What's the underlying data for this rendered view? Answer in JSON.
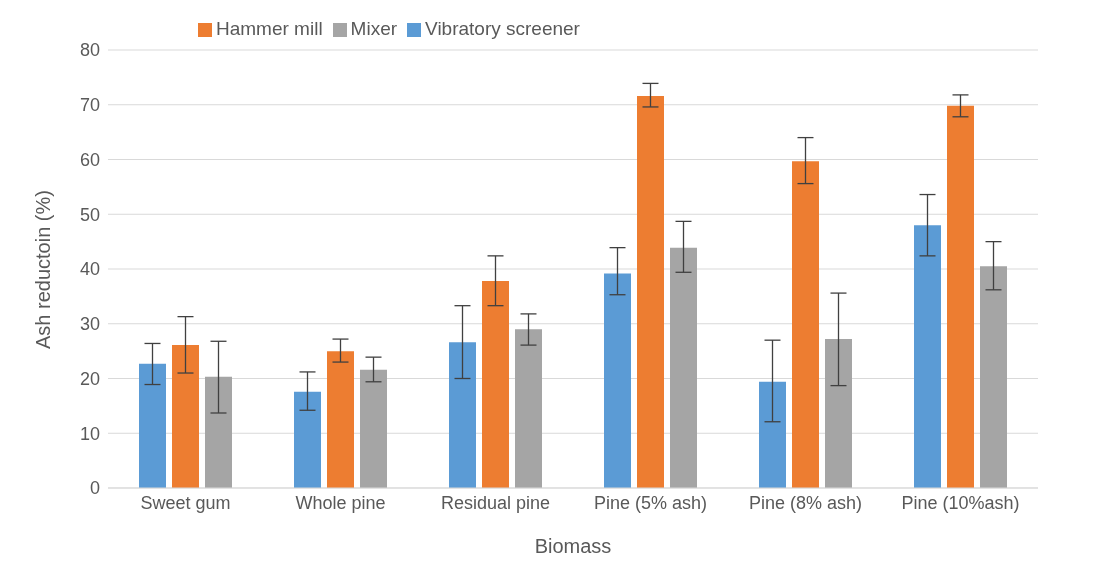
{
  "chart_data": {
    "type": "bar",
    "xlabel": "Biomass",
    "ylabel": "Ash reductoin (%)",
    "categories": [
      "Sweet gum",
      "Whole pine",
      "Residual pine",
      "Pine (5% ash)",
      "Pine (8% ash)",
      "Pine (10%ash)"
    ],
    "series": [
      {
        "name": "Vibratory screener",
        "color": "#5b9bd5",
        "values": [
          22.7,
          17.6,
          26.6,
          39.2,
          19.4,
          48.0
        ],
        "errors": [
          [
            18.9,
            26.4
          ],
          [
            14.2,
            21.2
          ],
          [
            20.0,
            33.3
          ],
          [
            35.3,
            43.9
          ],
          [
            12.1,
            27.0
          ],
          [
            42.4,
            53.6
          ]
        ]
      },
      {
        "name": "Hammer mill",
        "color": "#ed7d31",
        "values": [
          26.1,
          25.0,
          37.8,
          71.6,
          59.7,
          69.8
        ],
        "errors": [
          [
            21.0,
            31.3
          ],
          [
            23.0,
            27.2
          ],
          [
            33.3,
            42.4
          ],
          [
            69.6,
            73.9
          ],
          [
            55.6,
            64.0
          ],
          [
            67.8,
            71.8
          ]
        ]
      },
      {
        "name": "Mixer",
        "color": "#a5a5a5",
        "values": [
          20.3,
          21.6,
          29.0,
          43.9,
          27.2,
          40.5
        ],
        "errors": [
          [
            13.7,
            26.8
          ],
          [
            19.4,
            23.9
          ],
          [
            26.1,
            31.8
          ],
          [
            39.4,
            48.7
          ],
          [
            18.7,
            35.6
          ],
          [
            36.2,
            45.0
          ]
        ]
      }
    ],
    "ylim": [
      0,
      80
    ],
    "yticks": [
      0,
      10,
      20,
      30,
      40,
      50,
      60,
      70,
      80
    ],
    "grid": "y",
    "legend": "top left"
  }
}
